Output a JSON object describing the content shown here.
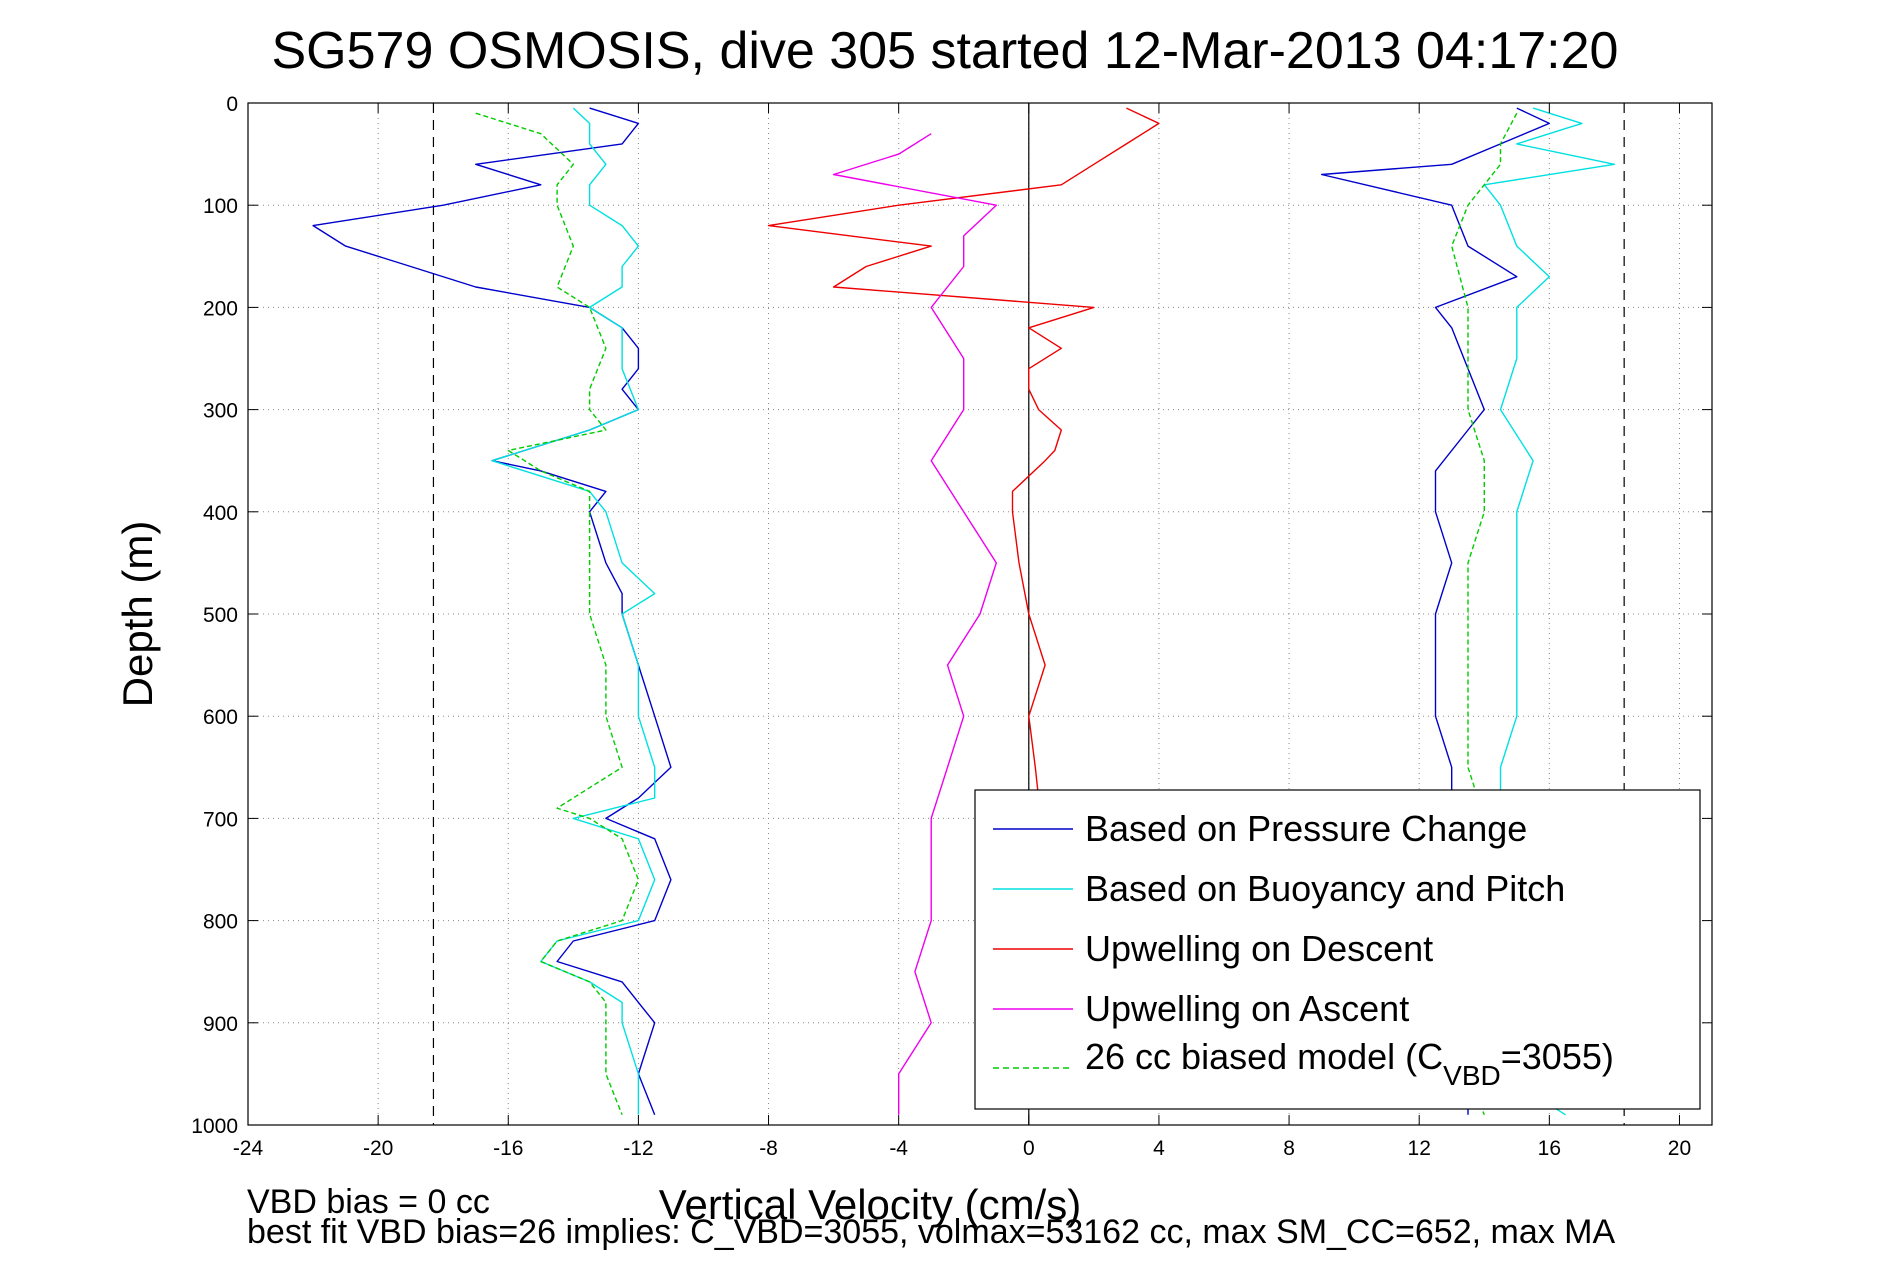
{
  "chart_data": {
    "type": "line",
    "title": "SG579 OSMOSIS, dive 305 started 12-Mar-2013 04:17:20",
    "xlabel": "Vertical Velocity (cm/s)",
    "ylabel": "Depth (m)",
    "xlim": [
      -24,
      21
    ],
    "ylim": [
      1000,
      0
    ],
    "y_reversed": true,
    "grid": "dotted",
    "legend_position": "bottom-right",
    "x_ticks": [
      "-24",
      "-20",
      "-16",
      "-12",
      "-8",
      "-4",
      "0",
      "4",
      "8",
      "12",
      "16",
      "20"
    ],
    "y_ticks": [
      "0",
      "100",
      "200",
      "300",
      "400",
      "500",
      "600",
      "700",
      "800",
      "900",
      "1000"
    ],
    "x_tick_values": [
      -24,
      -20,
      -16,
      -12,
      -8,
      -4,
      0,
      4,
      8,
      12,
      16,
      20
    ],
    "y_tick_values": [
      0,
      100,
      200,
      300,
      400,
      500,
      600,
      700,
      800,
      900,
      1000
    ],
    "reference_lines": [
      {
        "x": -18.3,
        "style": "dashed",
        "color": "#000000"
      },
      {
        "x": 18.3,
        "style": "dashed",
        "color": "#000000"
      },
      {
        "x": 0,
        "style": "solid",
        "color": "#000000"
      }
    ],
    "series": [
      {
        "name": "Based on Pressure Change",
        "color": "#0000cc",
        "style": "solid",
        "segments": [
          {
            "depth": [
              5,
              20,
              40,
              60,
              80,
              100,
              120,
              140,
              160,
              180,
              200,
              220,
              240,
              260,
              280,
              300,
              320,
              340,
              350,
              360,
              380,
              400,
              450,
              480,
              500,
              550,
              600,
              650,
              680,
              700,
              720,
              760,
              800,
              820,
              840,
              860,
              880,
              900,
              950,
              990
            ],
            "velocity": [
              -13.5,
              -12,
              -12.5,
              -17,
              -15,
              -18,
              -22,
              -21,
              -19,
              -17,
              -13.5,
              -12.5,
              -12,
              -12,
              -12.5,
              -12,
              -13.5,
              -15.5,
              -16.5,
              -15,
              -13,
              -13.5,
              -13,
              -12.5,
              -12.5,
              -12,
              -11.5,
              -11,
              -12,
              -13,
              -11.5,
              -11,
              -11.5,
              -14,
              -14.5,
              -12.5,
              -12,
              -11.5,
              -12,
              -11.5
            ]
          },
          {
            "depth": [
              5,
              20,
              40,
              60,
              70,
              100,
              140,
              170,
              200,
              220,
              260,
              300,
              320,
              360,
              400,
              450,
              500,
              550,
              600,
              650,
              700,
              750,
              800,
              850,
              900,
              950,
              990
            ],
            "velocity": [
              15,
              16,
              14.5,
              13,
              9,
              13,
              13.5,
              15,
              12.5,
              13,
              13.5,
              14,
              13.5,
              12.5,
              12.5,
              13,
              12.5,
              12.5,
              12.5,
              13,
              13,
              13.5,
              13.5,
              13,
              13,
              13.5,
              13.5
            ]
          }
        ]
      },
      {
        "name": "Based on Buoyancy and Pitch",
        "color": "#00e0e0",
        "style": "solid",
        "segments": [
          {
            "depth": [
              5,
              20,
              40,
              60,
              80,
              100,
              120,
              140,
              160,
              180,
              200,
              220,
              260,
              300,
              320,
              340,
              350,
              360,
              380,
              400,
              450,
              480,
              500,
              550,
              600,
              650,
              680,
              700,
              720,
              760,
              800,
              820,
              840,
              860,
              880,
              900,
              950,
              990
            ],
            "velocity": [
              -14,
              -13.5,
              -13.5,
              -13,
              -13.5,
              -13.5,
              -12.5,
              -12,
              -12.5,
              -12.5,
              -13.5,
              -12.5,
              -12.5,
              -12,
              -13.5,
              -15.5,
              -16.5,
              -15.5,
              -13.5,
              -13,
              -12.5,
              -11.5,
              -12.5,
              -12,
              -12,
              -11.5,
              -11.5,
              -14,
              -12,
              -11.5,
              -12,
              -14.5,
              -15,
              -13.5,
              -12.5,
              -12.5,
              -12,
              -12
            ]
          },
          {
            "depth": [
              5,
              20,
              40,
              60,
              80,
              100,
              140,
              170,
              200,
              250,
              300,
              350,
              400,
              450,
              500,
              550,
              600,
              650,
              700,
              750,
              800,
              850,
              900,
              950,
              990
            ],
            "velocity": [
              15.5,
              17,
              15,
              18,
              14,
              14.5,
              15,
              16,
              15,
              15,
              14.5,
              15.5,
              15,
              15,
              15,
              15,
              15,
              14.5,
              14.5,
              14.5,
              14.5,
              14.5,
              14.5,
              14.5,
              16.5
            ]
          }
        ]
      },
      {
        "name": "Upwelling on Descent",
        "color": "#ee0000",
        "style": "solid",
        "segments": [
          {
            "depth": [
              5,
              20,
              40,
              60,
              80,
              100,
              120,
              140,
              160,
              180,
              200,
              220,
              240,
              260,
              280,
              300,
              320,
              340,
              350,
              380,
              400,
              450,
              500,
              550,
              600,
              650,
              680
            ],
            "velocity": [
              3,
              4,
              3,
              2,
              1,
              -4,
              -8,
              -3,
              -5,
              -6,
              2,
              0,
              1,
              0,
              0,
              0.3,
              1,
              0.8,
              0.5,
              -0.5,
              -0.5,
              -0.3,
              0,
              0.5,
              0,
              0.2,
              0.3
            ]
          }
        ]
      },
      {
        "name": "Upwelling on Ascent",
        "color": "#ee00ee",
        "style": "solid",
        "segments": [
          {
            "depth": [
              30,
              50,
              70,
              100,
              130,
              160,
              200,
              250,
              300,
              350,
              400,
              450,
              500,
              550,
              600,
              650,
              700,
              750,
              800,
              850,
              900,
              950,
              990
            ],
            "velocity": [
              -3,
              -4,
              -6,
              -1,
              -2,
              -2,
              -3,
              -2,
              -2,
              -3,
              -2,
              -1,
              -1.5,
              -2.5,
              -2,
              -2.5,
              -3,
              -3,
              -3,
              -3.5,
              -3,
              -4,
              -4
            ]
          }
        ]
      },
      {
        "name": "26 cc biased model (C_VBD=3055)",
        "color": "#00cc00",
        "style": "dashed",
        "segments": [
          {
            "depth": [
              10,
              30,
              60,
              80,
              100,
              140,
              180,
              200,
              240,
              280,
              300,
              320,
              330,
              340,
              360,
              380,
              400,
              450,
              500,
              550,
              600,
              650,
              670,
              690,
              700,
              720,
              760,
              800,
              820,
              840,
              860,
              880,
              900,
              950,
              990
            ],
            "velocity": [
              -17,
              -15,
              -14,
              -14.5,
              -14.5,
              -14,
              -14.5,
              -13.5,
              -13,
              -13.5,
              -13.5,
              -13,
              -14.5,
              -16,
              -15,
              -13.5,
              -13.5,
              -13.5,
              -13.5,
              -13,
              -13,
              -12.5,
              -13.5,
              -14.5,
              -13.5,
              -12.5,
              -12,
              -12.5,
              -14.5,
              -15,
              -13.5,
              -13,
              -13,
              -13,
              -12.5
            ]
          },
          {
            "depth": [
              10,
              40,
              60,
              100,
              140,
              200,
              250,
              300,
              350,
              400,
              450,
              500,
              550,
              600,
              650,
              700,
              750,
              800,
              850,
              900,
              950,
              990
            ],
            "velocity": [
              15,
              14.5,
              14.5,
              13.5,
              13,
              13.5,
              13.5,
              13.5,
              14,
              14,
              13.5,
              13.5,
              13.5,
              13.5,
              13.5,
              14,
              14,
              13.5,
              13.5,
              13.5,
              13.5,
              14
            ]
          }
        ]
      }
    ],
    "legend_entries": [
      "Based on Pressure Change",
      "Based on Buoyancy and Pitch",
      "Upwelling on Descent",
      "Upwelling on Ascent"
    ],
    "legend_model_entry": {
      "prefix": "26 cc biased model (C",
      "subscript": "VBD",
      "suffix": "=3055)"
    },
    "footer": {
      "line1": "VBD bias = 0 cc",
      "line2": "best fit VBD bias=26 implies: C_VBD=3055, volmax=53162 cc, max SM_CC=652, max MA"
    }
  }
}
